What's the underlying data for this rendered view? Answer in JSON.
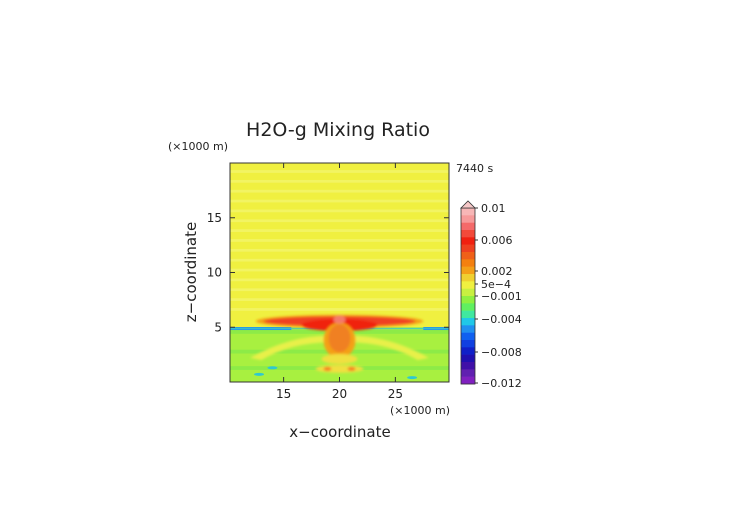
{
  "chart_data": {
    "type": "heatmap",
    "title": "H2O-g Mixing Ratio",
    "time_label": "7440 s",
    "xlabel": "x−coordinate",
    "ylabel": "z−coordinate",
    "x_unit": "(×1000 m)",
    "y_unit": "(×1000 m)",
    "xlim": [
      10.2,
      29.8
    ],
    "ylim": [
      0,
      20
    ],
    "x_ticks": [
      15,
      20,
      25
    ],
    "x_tick_labels": [
      "15",
      "20",
      "25"
    ],
    "y_ticks": [
      5,
      10,
      15
    ],
    "y_tick_labels": [
      "5",
      "10",
      "15"
    ],
    "colorbar": {
      "labels": [
        "0.01",
        "0.006",
        "0.002",
        "5e−4",
        "−0.001",
        "−0.004",
        "−0.008",
        "−0.012"
      ],
      "label_values": [
        0.01,
        0.006,
        0.002,
        0.0005,
        -0.001,
        -0.004,
        -0.008,
        -0.012
      ],
      "colors": [
        "#f7b6b6",
        "#f69a9a",
        "#f46a6a",
        "#f24a3a",
        "#f02010",
        "#ee4020",
        "#f06018",
        "#f48010",
        "#f4a018",
        "#f0d030",
        "#f0f040",
        "#c8f040",
        "#90f040",
        "#60f060",
        "#40e8a0",
        "#20c8e8",
        "#2090f0",
        "#1060f0",
        "#1040e0",
        "#1020c8",
        "#2010b0",
        "#4010a8",
        "#6020b0",
        "#8020c0"
      ]
    },
    "regions": [
      {
        "name": "upper background",
        "z_range": [
          5.5,
          20
        ],
        "value": 0.0005,
        "color": "#f0f040"
      },
      {
        "name": "moist layer",
        "z_range": [
          0,
          5
        ],
        "value": -0.001,
        "color": "#a8f040"
      },
      {
        "name": "anvil outflow",
        "x_range": [
          12.5,
          27.5
        ],
        "z_range": [
          5,
          6
        ],
        "value": 0.005,
        "color": "#f04020"
      },
      {
        "name": "updraft core",
        "x_center": 20,
        "z_range": [
          2,
          5
        ],
        "value": 0.003,
        "color": "#f08020"
      },
      {
        "name": "dry boundary strip",
        "z": 4.9,
        "value": -0.005,
        "color": "#2090f0"
      }
    ]
  }
}
